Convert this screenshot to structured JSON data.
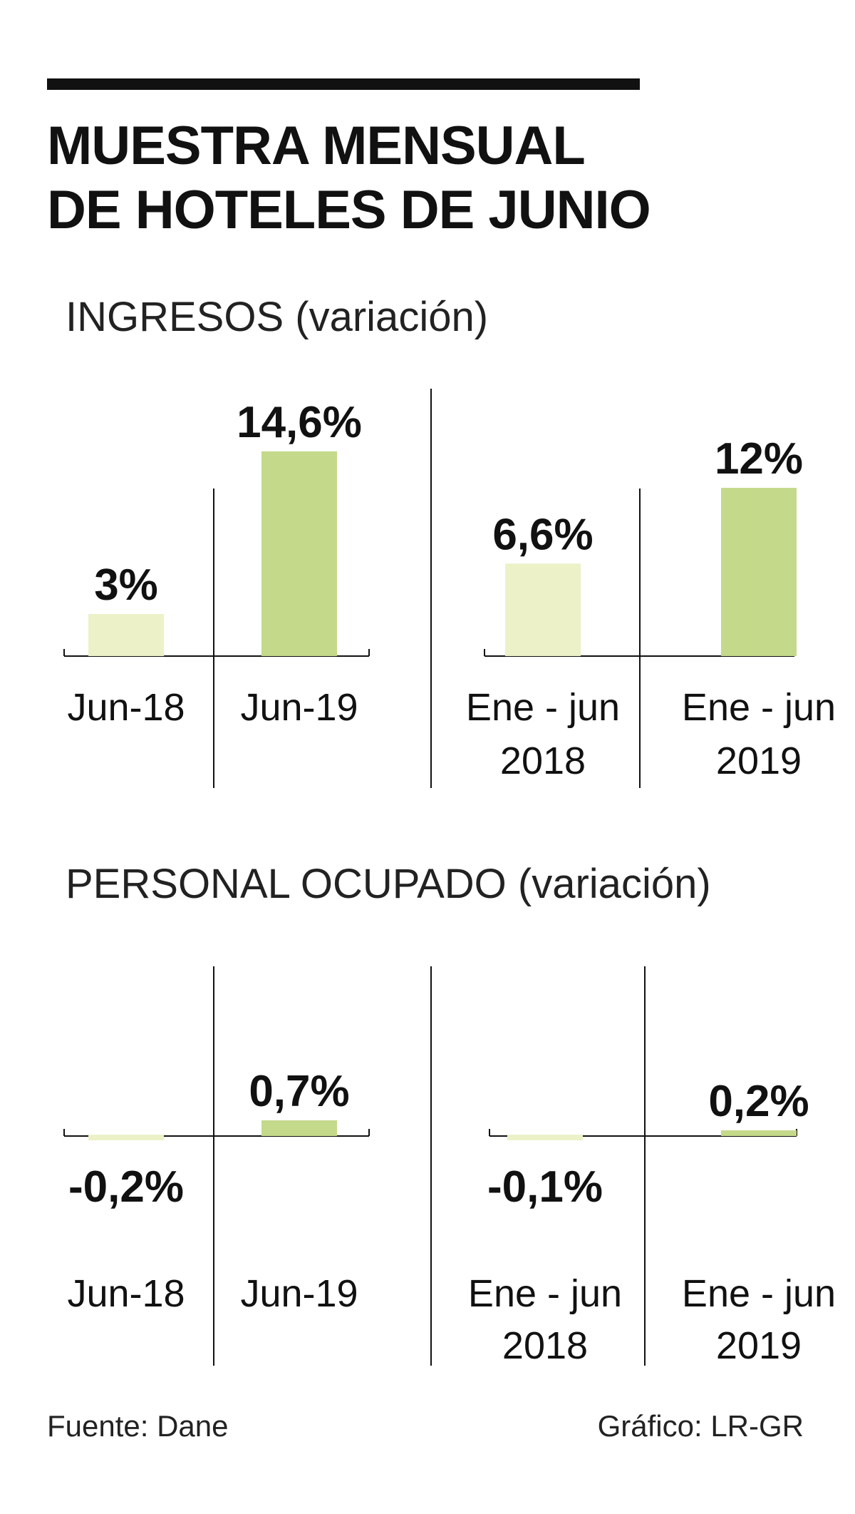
{
  "header": {
    "title_line1": "MUESTRA MENSUAL",
    "title_line2": "DE HOTELES DE JUNIO"
  },
  "colors": {
    "light_bar": "#ecf1c8",
    "dark_bar": "#c5d98b",
    "ink": "#111111"
  },
  "chart_data": [
    {
      "type": "bar",
      "title": "INGRESOS (variación)",
      "panels": [
        {
          "categories": [
            [
              "Jun-18"
            ],
            [
              "Jun-19"
            ]
          ],
          "values": [
            3,
            14.6
          ],
          "labels": [
            "3%",
            "14,6%"
          ]
        },
        {
          "categories": [
            [
              "Ene - jun",
              "2018"
            ],
            [
              "Ene - jun",
              "2019"
            ]
          ],
          "values": [
            6.6,
            12
          ],
          "labels": [
            "6,6%",
            "12%"
          ]
        }
      ],
      "ylabel": "%",
      "ylim": [
        0,
        14.6
      ]
    },
    {
      "type": "bar",
      "title": "PERSONAL OCUPADO (variación)",
      "panels": [
        {
          "categories": [
            [
              "Jun-18"
            ],
            [
              "Jun-19"
            ]
          ],
          "values": [
            -0.2,
            0.7
          ],
          "labels": [
            "-0,2%",
            "0,7%"
          ]
        },
        {
          "categories": [
            [
              "Ene - jun",
              "2018"
            ],
            [
              "Ene - jun",
              "2019"
            ]
          ],
          "values": [
            -0.1,
            0.2
          ],
          "labels": [
            "-0,1%",
            "0,2%"
          ]
        }
      ],
      "ylabel": "%"
    }
  ],
  "footer": {
    "source": "Fuente: Dane",
    "credit": "Gráfico: LR-GR"
  }
}
